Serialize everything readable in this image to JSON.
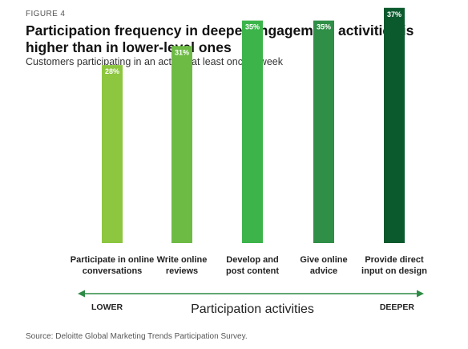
{
  "figure_label": "FIGURE 4",
  "title": "Participation frequency in deeper engagement activities is higher than in lower-level ones",
  "subtitle": "Customers participating in an activity at least once a week",
  "source": "Source: Deloitte Global Marketing Trends Participation Survey.",
  "colors": {
    "bars": [
      "#8dc63f",
      "#6dbb45",
      "#3cb44a",
      "#2f8f46",
      "#0b5a2e"
    ],
    "arrow": "#2e8b46",
    "text": "#1a1a1a"
  },
  "chart_data": {
    "type": "bar",
    "categories": [
      [
        "Participate in online",
        "conversations"
      ],
      [
        "Write online",
        "reviews"
      ],
      [
        "Develop and",
        "post content"
      ],
      [
        "Give online",
        "advice"
      ],
      [
        "Provide direct",
        "input on design"
      ]
    ],
    "values": [
      28,
      31,
      35,
      35,
      37
    ],
    "value_labels": [
      "28%",
      "31%",
      "35%",
      "35%",
      "37%"
    ],
    "ylim": [
      0,
      40
    ],
    "grid": false,
    "axis": {
      "left_label": "LOWER",
      "center_label": "Participation activities",
      "right_label": "DEEPER"
    }
  }
}
